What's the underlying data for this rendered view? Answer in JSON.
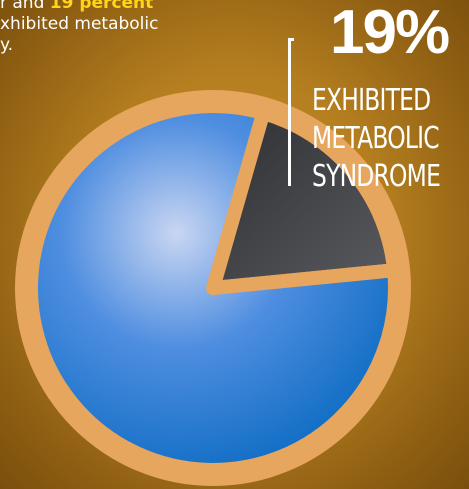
{
  "intro": {
    "line1_prefix": "r and ",
    "line1_highlight": "19 percent",
    "line2": "xhibited metabolic",
    "line3": "y."
  },
  "callout": {
    "percent": "19%",
    "label_lines": [
      "EXHIBITED",
      "METABOLIC",
      "SYNDROME"
    ]
  },
  "chart_data": {
    "type": "pie",
    "slices": [
      {
        "label": "Exhibited metabolic syndrome",
        "value": 19,
        "color": "#48494d"
      },
      {
        "value": 81,
        "color": "#1470c4"
      }
    ],
    "start_angle_deg": 16,
    "border_color": "#e6a65e"
  }
}
